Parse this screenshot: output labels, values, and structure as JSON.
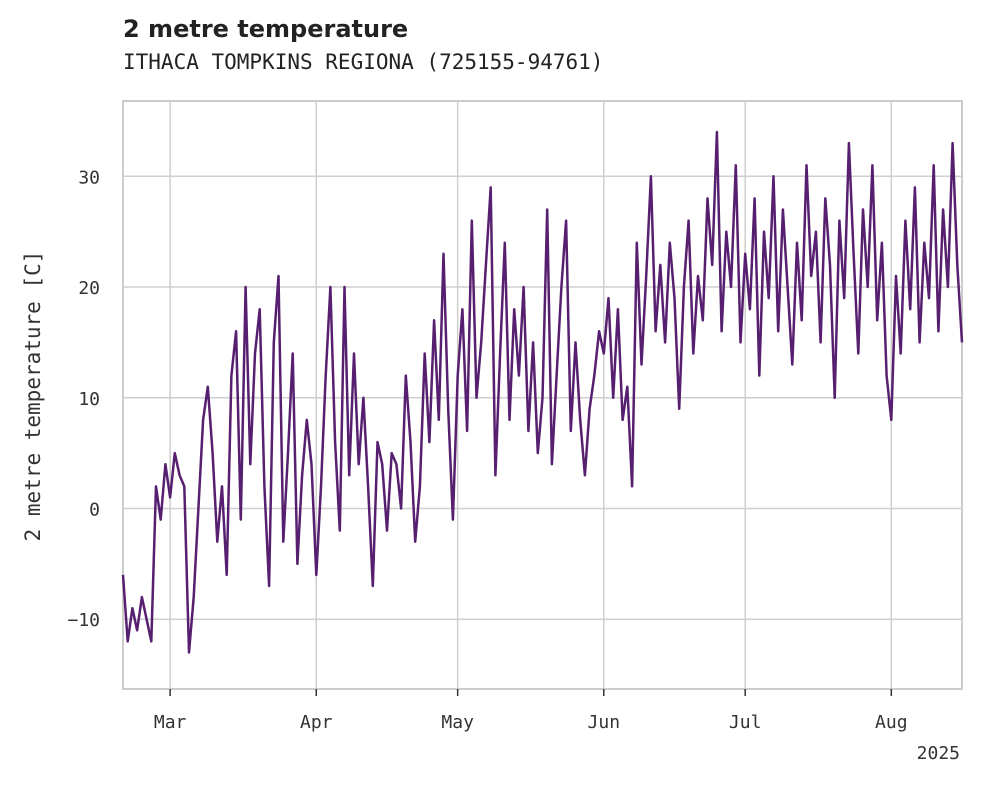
{
  "title": "2 metre temperature",
  "subtitle": "ITHACA TOMPKINS REGIONA (725155-94761)",
  "colors": {
    "line": "#571f6f",
    "grid": "#cfcfcf",
    "frame": "#cccccc",
    "text": "#333333"
  },
  "chart_data": {
    "type": "line",
    "title": "2 metre temperature",
    "subtitle": "ITHACA TOMPKINS REGIONA (725155-94761)",
    "ylabel": "2 metre temperature [C]",
    "xlabel": "",
    "x_year_label": "2025",
    "xlim": [
      "2025-02-19",
      "2025-08-16"
    ],
    "ylim": [
      -16.3,
      36.8
    ],
    "grid": true,
    "x_ticks": [
      {
        "date": "2025-03-01",
        "label": "Mar"
      },
      {
        "date": "2025-04-01",
        "label": "Apr"
      },
      {
        "date": "2025-05-01",
        "label": "May"
      },
      {
        "date": "2025-06-01",
        "label": "Jun"
      },
      {
        "date": "2025-07-01",
        "label": "Jul"
      },
      {
        "date": "2025-08-01",
        "label": "Aug"
      }
    ],
    "y_ticks": [
      {
        "value": 30,
        "label": "30"
      },
      {
        "value": 20,
        "label": "20"
      },
      {
        "value": 10,
        "label": "10"
      },
      {
        "value": 0,
        "label": "0"
      },
      {
        "value": -10,
        "label": "−10"
      }
    ],
    "series": [
      {
        "color": "#571f6f",
        "points": [
          [
            "2025-02-19",
            -6
          ],
          [
            "2025-02-20",
            -12
          ],
          [
            "2025-02-21",
            -9
          ],
          [
            "2025-02-22",
            -11
          ],
          [
            "2025-02-23",
            -8
          ],
          [
            "2025-02-24",
            -10
          ],
          [
            "2025-02-25",
            -12
          ],
          [
            "2025-02-26",
            2
          ],
          [
            "2025-02-27",
            -1
          ],
          [
            "2025-02-28",
            4
          ],
          [
            "2025-03-01",
            1
          ],
          [
            "2025-03-02",
            5
          ],
          [
            "2025-03-03",
            3
          ],
          [
            "2025-03-04",
            2
          ],
          [
            "2025-03-05",
            -13
          ],
          [
            "2025-03-06",
            -8
          ],
          [
            "2025-03-07",
            0
          ],
          [
            "2025-03-08",
            8
          ],
          [
            "2025-03-09",
            11
          ],
          [
            "2025-03-10",
            5
          ],
          [
            "2025-03-11",
            -3
          ],
          [
            "2025-03-12",
            2
          ],
          [
            "2025-03-13",
            -6
          ],
          [
            "2025-03-14",
            12
          ],
          [
            "2025-03-15",
            16
          ],
          [
            "2025-03-16",
            -1
          ],
          [
            "2025-03-17",
            20
          ],
          [
            "2025-03-18",
            4
          ],
          [
            "2025-03-19",
            14
          ],
          [
            "2025-03-20",
            18
          ],
          [
            "2025-03-21",
            2
          ],
          [
            "2025-03-22",
            -7
          ],
          [
            "2025-03-23",
            15
          ],
          [
            "2025-03-24",
            21
          ],
          [
            "2025-03-25",
            -3
          ],
          [
            "2025-03-26",
            5
          ],
          [
            "2025-03-27",
            14
          ],
          [
            "2025-03-28",
            -5
          ],
          [
            "2025-03-29",
            3
          ],
          [
            "2025-03-30",
            8
          ],
          [
            "2025-03-31",
            4
          ],
          [
            "2025-04-01",
            -6
          ],
          [
            "2025-04-02",
            2
          ],
          [
            "2025-04-03",
            12
          ],
          [
            "2025-04-04",
            20
          ],
          [
            "2025-04-05",
            6
          ],
          [
            "2025-04-06",
            -2
          ],
          [
            "2025-04-07",
            20
          ],
          [
            "2025-04-08",
            3
          ],
          [
            "2025-04-09",
            14
          ],
          [
            "2025-04-10",
            4
          ],
          [
            "2025-04-11",
            10
          ],
          [
            "2025-04-12",
            2
          ],
          [
            "2025-04-13",
            -7
          ],
          [
            "2025-04-14",
            6
          ],
          [
            "2025-04-15",
            4
          ],
          [
            "2025-04-16",
            -2
          ],
          [
            "2025-04-17",
            5
          ],
          [
            "2025-04-18",
            4
          ],
          [
            "2025-04-19",
            0
          ],
          [
            "2025-04-20",
            12
          ],
          [
            "2025-04-21",
            6
          ],
          [
            "2025-04-22",
            -3
          ],
          [
            "2025-04-23",
            2
          ],
          [
            "2025-04-24",
            14
          ],
          [
            "2025-04-25",
            6
          ],
          [
            "2025-04-26",
            17
          ],
          [
            "2025-04-27",
            8
          ],
          [
            "2025-04-28",
            23
          ],
          [
            "2025-04-29",
            9
          ],
          [
            "2025-04-30",
            -1
          ],
          [
            "2025-05-01",
            12
          ],
          [
            "2025-05-02",
            18
          ],
          [
            "2025-05-03",
            7
          ],
          [
            "2025-05-04",
            26
          ],
          [
            "2025-05-05",
            10
          ],
          [
            "2025-05-06",
            15
          ],
          [
            "2025-05-07",
            22
          ],
          [
            "2025-05-08",
            29
          ],
          [
            "2025-05-09",
            3
          ],
          [
            "2025-05-10",
            14
          ],
          [
            "2025-05-11",
            24
          ],
          [
            "2025-05-12",
            8
          ],
          [
            "2025-05-13",
            18
          ],
          [
            "2025-05-14",
            12
          ],
          [
            "2025-05-15",
            20
          ],
          [
            "2025-05-16",
            7
          ],
          [
            "2025-05-17",
            15
          ],
          [
            "2025-05-18",
            5
          ],
          [
            "2025-05-19",
            10
          ],
          [
            "2025-05-20",
            27
          ],
          [
            "2025-05-21",
            4
          ],
          [
            "2025-05-22",
            12
          ],
          [
            "2025-05-23",
            20
          ],
          [
            "2025-05-24",
            26
          ],
          [
            "2025-05-25",
            7
          ],
          [
            "2025-05-26",
            15
          ],
          [
            "2025-05-27",
            8
          ],
          [
            "2025-05-28",
            3
          ],
          [
            "2025-05-29",
            9
          ],
          [
            "2025-05-30",
            12
          ],
          [
            "2025-05-31",
            16
          ],
          [
            "2025-06-01",
            14
          ],
          [
            "2025-06-02",
            19
          ],
          [
            "2025-06-03",
            10
          ],
          [
            "2025-06-04",
            18
          ],
          [
            "2025-06-05",
            8
          ],
          [
            "2025-06-06",
            11
          ],
          [
            "2025-06-07",
            2
          ],
          [
            "2025-06-08",
            24
          ],
          [
            "2025-06-09",
            13
          ],
          [
            "2025-06-10",
            21
          ],
          [
            "2025-06-11",
            30
          ],
          [
            "2025-06-12",
            16
          ],
          [
            "2025-06-13",
            22
          ],
          [
            "2025-06-14",
            15
          ],
          [
            "2025-06-15",
            24
          ],
          [
            "2025-06-16",
            19
          ],
          [
            "2025-06-17",
            9
          ],
          [
            "2025-06-18",
            20
          ],
          [
            "2025-06-19",
            26
          ],
          [
            "2025-06-20",
            14
          ],
          [
            "2025-06-21",
            21
          ],
          [
            "2025-06-22",
            17
          ],
          [
            "2025-06-23",
            28
          ],
          [
            "2025-06-24",
            22
          ],
          [
            "2025-06-25",
            34
          ],
          [
            "2025-06-26",
            16
          ],
          [
            "2025-06-27",
            25
          ],
          [
            "2025-06-28",
            20
          ],
          [
            "2025-06-29",
            31
          ],
          [
            "2025-06-30",
            15
          ],
          [
            "2025-07-01",
            23
          ],
          [
            "2025-07-02",
            18
          ],
          [
            "2025-07-03",
            28
          ],
          [
            "2025-07-04",
            12
          ],
          [
            "2025-07-05",
            25
          ],
          [
            "2025-07-06",
            19
          ],
          [
            "2025-07-07",
            30
          ],
          [
            "2025-07-08",
            16
          ],
          [
            "2025-07-09",
            27
          ],
          [
            "2025-07-10",
            20
          ],
          [
            "2025-07-11",
            13
          ],
          [
            "2025-07-12",
            24
          ],
          [
            "2025-07-13",
            17
          ],
          [
            "2025-07-14",
            31
          ],
          [
            "2025-07-15",
            21
          ],
          [
            "2025-07-16",
            25
          ],
          [
            "2025-07-17",
            15
          ],
          [
            "2025-07-18",
            28
          ],
          [
            "2025-07-19",
            22
          ],
          [
            "2025-07-20",
            10
          ],
          [
            "2025-07-21",
            26
          ],
          [
            "2025-07-22",
            19
          ],
          [
            "2025-07-23",
            33
          ],
          [
            "2025-07-24",
            23
          ],
          [
            "2025-07-25",
            14
          ],
          [
            "2025-07-26",
            27
          ],
          [
            "2025-07-27",
            20
          ],
          [
            "2025-07-28",
            31
          ],
          [
            "2025-07-29",
            17
          ],
          [
            "2025-07-30",
            24
          ],
          [
            "2025-07-31",
            12
          ],
          [
            "2025-08-01",
            8
          ],
          [
            "2025-08-02",
            21
          ],
          [
            "2025-08-03",
            14
          ],
          [
            "2025-08-04",
            26
          ],
          [
            "2025-08-05",
            18
          ],
          [
            "2025-08-06",
            29
          ],
          [
            "2025-08-07",
            15
          ],
          [
            "2025-08-08",
            24
          ],
          [
            "2025-08-09",
            19
          ],
          [
            "2025-08-10",
            31
          ],
          [
            "2025-08-11",
            16
          ],
          [
            "2025-08-12",
            27
          ],
          [
            "2025-08-13",
            20
          ],
          [
            "2025-08-14",
            33
          ],
          [
            "2025-08-15",
            22
          ],
          [
            "2025-08-16",
            15
          ]
        ]
      }
    ]
  }
}
